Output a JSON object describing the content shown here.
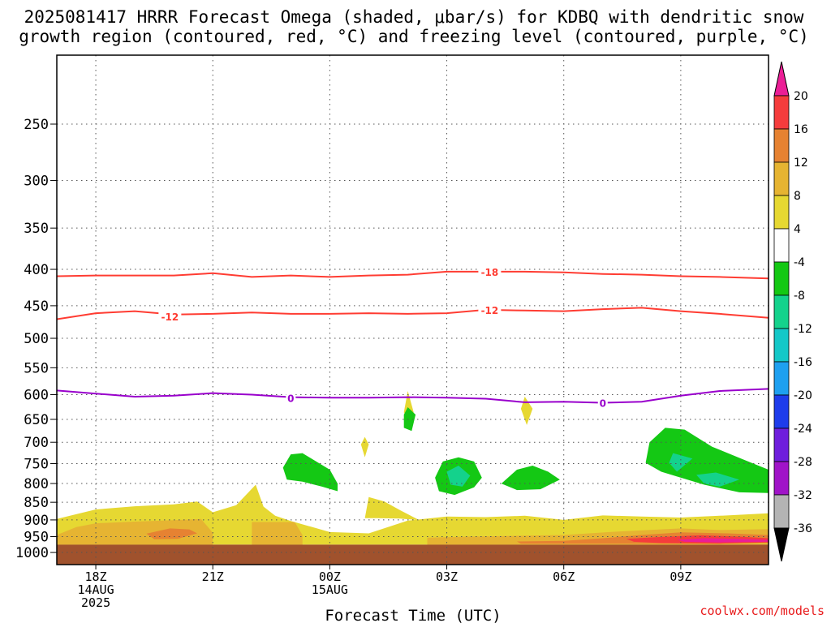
{
  "chart_data": {
    "type": "contour",
    "title_line1": "2025081417 HRRR Forecast Omega (shaded, μbar/s) for KDBQ with dendritic snow",
    "title_line2": "growth region (contoured, red, °C) and freezing level (contoured, purple, °C)",
    "xlabel": "Forecast Time (UTC)",
    "ylabel": "",
    "y_scale": "log-pressure (inverted)",
    "ylim": [
      1040,
      200
    ],
    "xlim": [
      17,
      35.25
    ],
    "y_ticks": [
      250,
      300,
      350,
      400,
      450,
      500,
      550,
      600,
      650,
      700,
      750,
      800,
      850,
      900,
      950,
      1000
    ],
    "x_ticks": [
      {
        "x": 18,
        "labels": [
          "18Z",
          "14AUG",
          "2025"
        ]
      },
      {
        "x": 21,
        "labels": [
          "21Z"
        ]
      },
      {
        "x": 24,
        "labels": [
          "00Z",
          "15AUG"
        ]
      },
      {
        "x": 27,
        "labels": [
          "03Z"
        ]
      },
      {
        "x": 30,
        "labels": [
          "06Z"
        ]
      },
      {
        "x": 33,
        "labels": [
          "09Z"
        ]
      }
    ],
    "grid": true,
    "surface": {
      "color": "#a0522d",
      "pressure_top": 975
    },
    "contours": [
      {
        "level": -18,
        "color": "#ff3c32",
        "label": "-18",
        "points": [
          [
            17,
            409
          ],
          [
            18,
            408
          ],
          [
            19,
            408
          ],
          [
            20,
            408
          ],
          [
            21,
            405
          ],
          [
            22,
            410
          ],
          [
            23,
            408
          ],
          [
            24,
            410
          ],
          [
            25,
            408
          ],
          [
            26,
            407
          ],
          [
            27,
            403
          ],
          [
            28,
            403
          ],
          [
            29,
            403
          ],
          [
            30,
            404
          ],
          [
            31,
            406
          ],
          [
            32,
            407
          ],
          [
            33,
            409
          ],
          [
            34,
            410
          ],
          [
            35.25,
            412
          ]
        ],
        "label_at": [
          [
            28.1,
            403
          ]
        ]
      },
      {
        "level": -12,
        "color": "#ff3c32",
        "label": "-12",
        "points": [
          [
            17,
            470
          ],
          [
            18,
            461
          ],
          [
            19,
            458
          ],
          [
            20,
            463
          ],
          [
            21,
            462
          ],
          [
            22,
            460
          ],
          [
            23,
            462
          ],
          [
            24,
            462
          ],
          [
            25,
            461
          ],
          [
            26,
            462
          ],
          [
            27,
            461
          ],
          [
            28,
            456
          ],
          [
            29,
            457
          ],
          [
            30,
            458
          ],
          [
            31,
            455
          ],
          [
            32,
            453
          ],
          [
            33,
            458
          ],
          [
            34,
            462
          ],
          [
            35.25,
            468
          ]
        ],
        "label_at": [
          [
            19.9,
            466
          ],
          [
            28.1,
            456
          ]
        ]
      },
      {
        "level": 0,
        "color": "#9900cc",
        "label": "0",
        "points": [
          [
            17,
            592
          ],
          [
            18,
            598
          ],
          [
            19,
            604
          ],
          [
            20,
            602
          ],
          [
            21,
            597
          ],
          [
            22,
            600
          ],
          [
            23,
            605
          ],
          [
            24,
            606
          ],
          [
            25,
            606
          ],
          [
            26,
            605
          ],
          [
            27,
            606
          ],
          [
            28,
            608
          ],
          [
            29,
            615
          ],
          [
            30,
            614
          ],
          [
            31,
            616
          ],
          [
            32,
            614
          ],
          [
            33,
            602
          ],
          [
            34,
            593
          ],
          [
            35.25,
            589
          ]
        ],
        "label_at": [
          [
            23.0,
            606
          ],
          [
            31.0,
            616
          ]
        ]
      }
    ],
    "shaded_regions": [
      {
        "label": "4 to 8",
        "color": "#e6d832",
        "points": [
          [
            17,
            897
          ],
          [
            18,
            870
          ],
          [
            19,
            861
          ],
          [
            20,
            856
          ],
          [
            20.6,
            848
          ],
          [
            21,
            878
          ],
          [
            21.6,
            858
          ],
          [
            22.1,
            803
          ],
          [
            22.3,
            862
          ],
          [
            22.6,
            888
          ],
          [
            23,
            903
          ],
          [
            24,
            936
          ],
          [
            25,
            940
          ],
          [
            26,
            902
          ],
          [
            27,
            890
          ],
          [
            28,
            892
          ],
          [
            29,
            888
          ],
          [
            30,
            900
          ],
          [
            31,
            887
          ],
          [
            32,
            890
          ],
          [
            33,
            893
          ],
          [
            34,
            888
          ],
          [
            35.25,
            881
          ],
          [
            35.25,
            975
          ],
          [
            17,
            975
          ]
        ]
      },
      {
        "label": "4 to 8",
        "color": "#e6d832",
        "points": [
          [
            25,
            836
          ],
          [
            25.4,
            848
          ],
          [
            25.8,
            872
          ],
          [
            26.3,
            901
          ],
          [
            25.8,
            896
          ],
          [
            25.2,
            895
          ],
          [
            24.9,
            895
          ]
        ]
      },
      {
        "label": "4 to 8",
        "color": "#e6d832",
        "points": [
          [
            26.0,
            593
          ],
          [
            26.15,
            635
          ],
          [
            26.05,
            660
          ],
          [
            25.9,
            635
          ]
        ]
      },
      {
        "label": "4 to 8",
        "color": "#e6d832",
        "points": [
          [
            24.9,
            688
          ],
          [
            25.0,
            705
          ],
          [
            24.9,
            735
          ],
          [
            24.8,
            705
          ]
        ]
      },
      {
        "label": "4 to 8",
        "color": "#e6d832",
        "points": [
          [
            29.0,
            604
          ],
          [
            29.2,
            628
          ],
          [
            29.05,
            662
          ],
          [
            28.9,
            628
          ]
        ]
      },
      {
        "label": "8 to 12",
        "color": "#e6b432",
        "points": [
          [
            17,
            945
          ],
          [
            17.5,
            921
          ],
          [
            18,
            910
          ],
          [
            19,
            905
          ],
          [
            20,
            901
          ],
          [
            20.7,
            897
          ],
          [
            21,
            938
          ],
          [
            21,
            975
          ],
          [
            17,
            975
          ]
        ]
      },
      {
        "label": "8 to 12",
        "color": "#e6b432",
        "points": [
          [
            22,
            906
          ],
          [
            23.1,
            906
          ],
          [
            23.3,
            945
          ],
          [
            23.3,
            975
          ],
          [
            22,
            975
          ]
        ]
      },
      {
        "label": "8 to 12",
        "color": "#e6b432",
        "points": [
          [
            26.5,
            953
          ],
          [
            27.6,
            950
          ],
          [
            28.5,
            948
          ],
          [
            30,
            945
          ],
          [
            31.3,
            935
          ],
          [
            33,
            925
          ],
          [
            34,
            930
          ],
          [
            35.25,
            927
          ],
          [
            35.25,
            975
          ],
          [
            26.5,
            975
          ]
        ]
      },
      {
        "label": "12 to 16",
        "color": "#e68232",
        "points": [
          [
            19.3,
            941
          ],
          [
            19.9,
            925
          ],
          [
            20.4,
            928
          ],
          [
            20.6,
            940
          ],
          [
            20.1,
            957
          ],
          [
            19.5,
            958
          ]
        ]
      },
      {
        "label": "12 to 16",
        "color": "#e68232",
        "points": [
          [
            28.8,
            965
          ],
          [
            30,
            963
          ],
          [
            31,
            955
          ],
          [
            32,
            945
          ],
          [
            33,
            937
          ],
          [
            34.2,
            940
          ],
          [
            35.25,
            945
          ],
          [
            35.25,
            968
          ],
          [
            34,
            972
          ],
          [
            32,
            972
          ],
          [
            30,
            972
          ],
          [
            28.9,
            972
          ]
        ]
      },
      {
        "label": "16 to 20",
        "color": "#f53c3c",
        "points": [
          [
            31.6,
            957
          ],
          [
            32.5,
            951
          ],
          [
            33.5,
            946
          ],
          [
            34.5,
            950
          ],
          [
            35.25,
            955
          ],
          [
            35.25,
            968
          ],
          [
            34,
            972
          ],
          [
            32.5,
            970
          ],
          [
            31.8,
            966
          ]
        ]
      },
      {
        "label": "> 20",
        "color": "#eb1e96",
        "points": [
          [
            32.9,
            960
          ],
          [
            33.6,
            955
          ],
          [
            34.5,
            957
          ],
          [
            35.25,
            960
          ],
          [
            35.25,
            966
          ],
          [
            34,
            968
          ],
          [
            33.1,
            966
          ]
        ]
      },
      {
        "label": "-4 to -8",
        "color": "#14c814",
        "points": [
          [
            23.0,
            728
          ],
          [
            23.3,
            725
          ],
          [
            24.0,
            765
          ],
          [
            24.2,
            800
          ],
          [
            24.2,
            820
          ],
          [
            23.8,
            808
          ],
          [
            23.3,
            795
          ],
          [
            22.9,
            790
          ],
          [
            22.8,
            760
          ]
        ]
      },
      {
        "label": "-4 to -8",
        "color": "#14c814",
        "points": [
          [
            26.0,
            625
          ],
          [
            26.2,
            640
          ],
          [
            26.1,
            675
          ],
          [
            25.9,
            668
          ],
          [
            25.9,
            640
          ]
        ]
      },
      {
        "label": "-4 to -8",
        "color": "#14c814",
        "points": [
          [
            26.7,
            785
          ],
          [
            26.9,
            745
          ],
          [
            27.3,
            735
          ],
          [
            27.7,
            745
          ],
          [
            27.9,
            785
          ],
          [
            27.7,
            810
          ],
          [
            27.2,
            830
          ],
          [
            26.8,
            820
          ]
        ]
      },
      {
        "label": "-4 to -8",
        "color": "#14c814",
        "points": [
          [
            28.4,
            800
          ],
          [
            28.8,
            765
          ],
          [
            29.2,
            755
          ],
          [
            29.6,
            770
          ],
          [
            29.9,
            790
          ],
          [
            29.4,
            815
          ],
          [
            28.8,
            817
          ]
        ]
      },
      {
        "label": "-4 to -8",
        "color": "#14c814",
        "points": [
          [
            32.2,
            700
          ],
          [
            32.6,
            668
          ],
          [
            33.1,
            672
          ],
          [
            33.8,
            710
          ],
          [
            34.6,
            740
          ],
          [
            35.25,
            765
          ],
          [
            35.25,
            825
          ],
          [
            34.5,
            823
          ],
          [
            33.6,
            803
          ],
          [
            32.9,
            782
          ],
          [
            32.5,
            770
          ],
          [
            32.1,
            748
          ]
        ]
      },
      {
        "label": "-8 to -12",
        "color": "#14d28c",
        "points": [
          [
            27.0,
            770
          ],
          [
            27.3,
            755
          ],
          [
            27.6,
            780
          ],
          [
            27.4,
            808
          ],
          [
            27.1,
            803
          ]
        ]
      },
      {
        "label": "-8 to -12",
        "color": "#14d28c",
        "points": [
          [
            32.8,
            725
          ],
          [
            33.3,
            738
          ],
          [
            32.9,
            770
          ],
          [
            32.7,
            748
          ]
        ]
      },
      {
        "label": "-8 to -12",
        "color": "#14d28c",
        "points": [
          [
            33.4,
            778
          ],
          [
            33.9,
            772
          ],
          [
            34.5,
            790
          ],
          [
            34.0,
            808
          ],
          [
            33.6,
            800
          ]
        ]
      }
    ],
    "colorbar": {
      "labels": [
        "20",
        "16",
        "12",
        "8",
        "4",
        "-4",
        "-8",
        "-12",
        "-16",
        "-20",
        "-24",
        "-28",
        "-32",
        "-36"
      ],
      "colors": [
        "#eb1e96",
        "#f53c3c",
        "#e68232",
        "#e6b432",
        "#e6d832",
        "#ffffff",
        "#14c814",
        "#14d28c",
        "#14c8c8",
        "#1ea0f0",
        "#1e3ceb",
        "#6e1edc",
        "#a014c8",
        "#b4b4b4",
        "#000000"
      ]
    }
  },
  "watermark": "coolwx.com/models"
}
